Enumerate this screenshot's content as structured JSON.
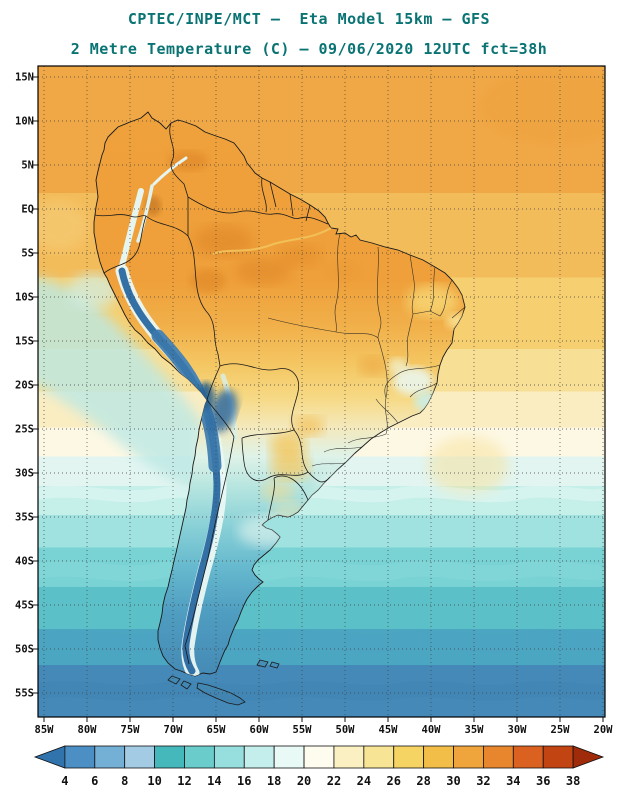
{
  "header": {
    "line1": "CPTEC/INPE/MCT –  Eta Model 15km – GFS",
    "line2": "2 Metre Temperature (C) – 09/06/2020 12UTC fct=38h"
  },
  "map": {
    "lat_labels": [
      "15N",
      "10N",
      "5N",
      "EQ",
      "5S",
      "10S",
      "15S",
      "20S",
      "25S",
      "30S",
      "35S",
      "40S",
      "45S",
      "50S",
      "55S"
    ],
    "lon_labels": [
      "85W",
      "80W",
      "75W",
      "70W",
      "65W",
      "60W",
      "55W",
      "50W",
      "45W",
      "40W",
      "35W",
      "30W",
      "25W",
      "20W"
    ]
  },
  "colorbar": {
    "labels": [
      "4",
      "6",
      "8",
      "10",
      "12",
      "14",
      "16",
      "18",
      "20",
      "22",
      "24",
      "26",
      "28",
      "30",
      "32",
      "34",
      "36",
      "38"
    ],
    "colors": [
      "#3173AD",
      "#4C8FC4",
      "#74AFD6",
      "#A3CCE4",
      "#45B8BC",
      "#6BCCCC",
      "#97DEDE",
      "#C4EEEC",
      "#E9F9F6",
      "#FDFCEF",
      "#FAF0C2",
      "#F7E494",
      "#F5D463",
      "#F2BE48",
      "#EFA43C",
      "#E8862E",
      "#DA611F",
      "#C34413",
      "#9F2B0B"
    ]
  },
  "colors": {
    "title": "#0a7373",
    "axis_label": "#111111"
  }
}
